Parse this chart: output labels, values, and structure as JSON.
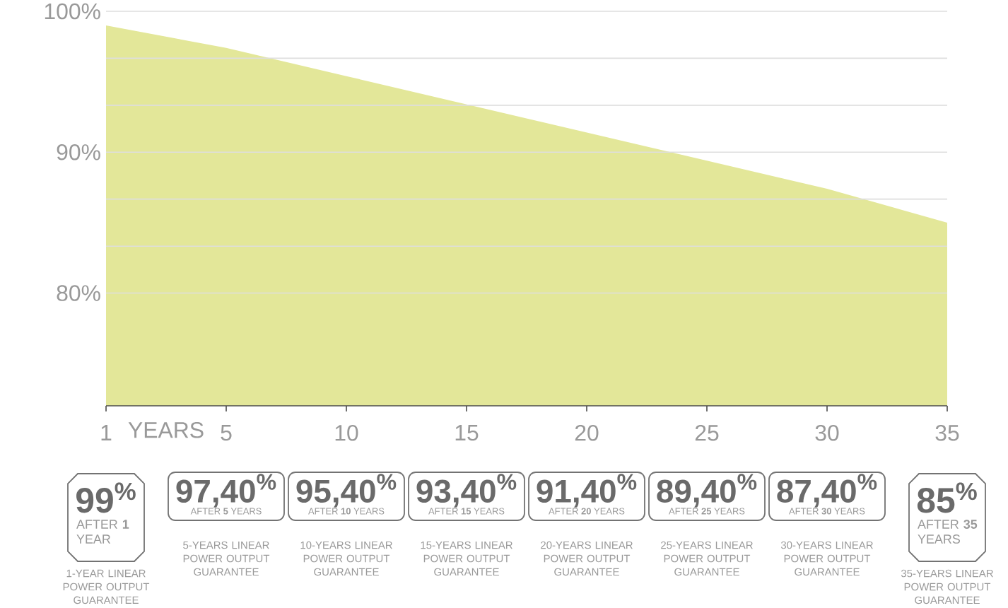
{
  "chart_data": {
    "type": "area",
    "xlabel": "YEARS",
    "categories": [
      "1",
      "5",
      "10",
      "15",
      "20",
      "25",
      "30",
      "35"
    ],
    "values": [
      99,
      97.4,
      95.4,
      93.4,
      91.4,
      89.4,
      87.4,
      85
    ],
    "value_labels": [
      "99$^{%}$",
      "97,40$^{%}$",
      "95,40$^{%}$",
      "93,40$^{%}$",
      "91,40$^{%}$",
      "89,40$^{%}$",
      "87,40$^{%}$",
      "85$^{%}$"
    ],
    "color": "#e3e799",
    "ylim": [
      72,
      100
    ],
    "yticks": [
      {
        "value": 100,
        "label": "100%"
      },
      {
        "value": 96.67,
        "label": null
      },
      {
        "value": 93.33,
        "label": null
      },
      {
        "value": 90,
        "label": "90%"
      },
      {
        "value": 86.67,
        "label": null
      },
      {
        "value": 83.33,
        "label": null
      },
      {
        "value": 80,
        "label": "80%"
      }
    ],
    "grid": "y",
    "annotations": [
      "AFTER **1** YEAR",
      "1-YEAR LINEAR POWER OUTPUT GUARANTEE",
      "AFTER **5** YEARS",
      "5-YEARS LINEAR POWER OUTPUT GUARANTEE",
      "AFTER **10** YEARS",
      "10-YEARS LINEAR POWER OUTPUT GUARANTEE",
      "AFTER **15** YEARS",
      "15-YEARS LINEAR POWER OUTPUT GUARANTEE",
      "AFTER **20** YEARS",
      "20-YEARS LINEAR POWER OUTPUT GUARANTEE",
      "AFTER **25** YEARS",
      "25-YEARS LINEAR POWER OUTPUT GUARANTEE",
      "AFTER **30** YEARS",
      "30-YEARS LINEAR POWER OUTPUT GUARANTEE",
      "AFTER **35** YEARS",
      "35-YEARS LINEAR POWER OUTPUT GUARANTEE"
    ]
  }
}
